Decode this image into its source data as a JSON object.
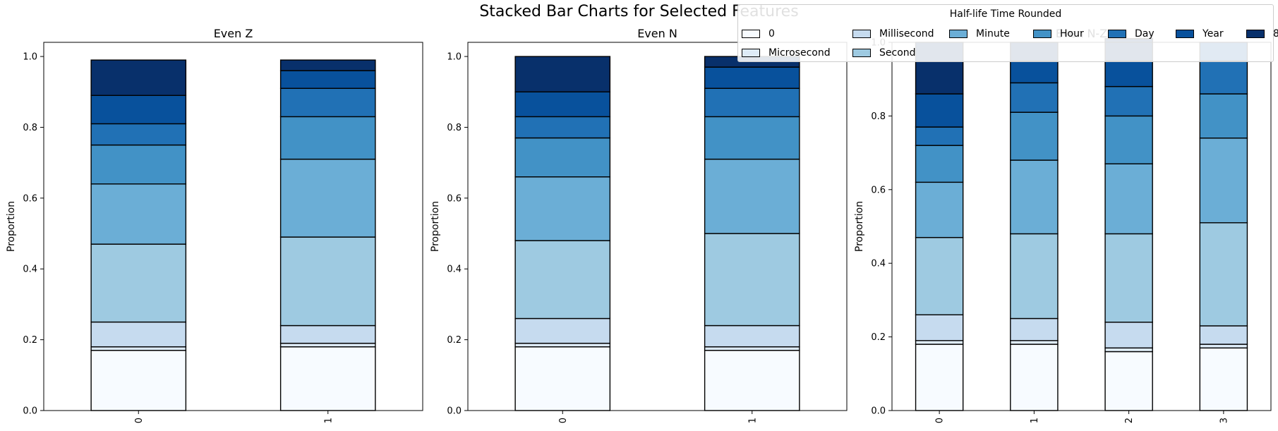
{
  "figure": {
    "suptitle": "Stacked Bar Charts for Selected Features"
  },
  "legend": {
    "title": "Half-life Time Rounded",
    "entries": [
      {
        "label": "0",
        "color": "#f7fbff"
      },
      {
        "label": "Microsecond",
        "color": "#deebf7"
      },
      {
        "label": "Millisecond",
        "color": "#c6dbef"
      },
      {
        "label": "Second",
        "color": "#9ecae1"
      },
      {
        "label": "Minute",
        "color": "#6baed6"
      },
      {
        "label": "Hour",
        "color": "#4292c6"
      },
      {
        "label": "Day",
        "color": "#2171b5"
      },
      {
        "label": "Year",
        "color": "#08519c"
      },
      {
        "label": "8",
        "color": "#08306b"
      }
    ]
  },
  "chart_data": [
    {
      "type": "bar",
      "stacked": true,
      "title": "Even Z",
      "xlabel": "",
      "ylabel": "Proportion",
      "ylim": [
        0,
        1.04
      ],
      "yticks": [
        "0.0",
        "0.2",
        "0.4",
        "0.6",
        "0.8",
        "1.0"
      ],
      "categories": [
        "0",
        "1"
      ],
      "series": [
        {
          "name": "0",
          "values": [
            0.17,
            0.18
          ]
        },
        {
          "name": "Microsecond",
          "values": [
            0.01,
            0.01
          ]
        },
        {
          "name": "Millisecond",
          "values": [
            0.07,
            0.05
          ]
        },
        {
          "name": "Second",
          "values": [
            0.22,
            0.25
          ]
        },
        {
          "name": "Minute",
          "values": [
            0.17,
            0.22
          ]
        },
        {
          "name": "Hour",
          "values": [
            0.11,
            0.12
          ]
        },
        {
          "name": "Day",
          "values": [
            0.06,
            0.08
          ]
        },
        {
          "name": "Year",
          "values": [
            0.08,
            0.05
          ]
        },
        {
          "name": "8",
          "values": [
            0.1,
            0.03
          ]
        }
      ]
    },
    {
      "type": "bar",
      "stacked": true,
      "title": "Even N",
      "xlabel": "",
      "ylabel": "Proportion",
      "ylim": [
        0,
        1.04
      ],
      "yticks": [
        "0.0",
        "0.2",
        "0.4",
        "0.6",
        "0.8",
        "1.0"
      ],
      "categories": [
        "0",
        "1"
      ],
      "series": [
        {
          "name": "0",
          "values": [
            0.18,
            0.17
          ]
        },
        {
          "name": "Microsecond",
          "values": [
            0.01,
            0.01
          ]
        },
        {
          "name": "Millisecond",
          "values": [
            0.07,
            0.06
          ]
        },
        {
          "name": "Second",
          "values": [
            0.22,
            0.26
          ]
        },
        {
          "name": "Minute",
          "values": [
            0.18,
            0.21
          ]
        },
        {
          "name": "Hour",
          "values": [
            0.11,
            0.12
          ]
        },
        {
          "name": "Day",
          "values": [
            0.06,
            0.08
          ]
        },
        {
          "name": "Year",
          "values": [
            0.07,
            0.06
          ]
        },
        {
          "name": "8",
          "values": [
            0.1,
            0.03
          ]
        }
      ]
    },
    {
      "type": "bar",
      "stacked": true,
      "title": "Even N-Z",
      "xlabel": "",
      "ylabel": "Proportion",
      "ylim": [
        0,
        1.0
      ],
      "yticks": [
        "0.0",
        "0.2",
        "0.4",
        "0.6",
        "0.8",
        "1.0"
      ],
      "categories": [
        "0",
        "1",
        "2",
        "3"
      ],
      "series": [
        {
          "name": "0",
          "values": [
            0.18,
            0.18,
            0.16,
            0.17
          ]
        },
        {
          "name": "Microsecond",
          "values": [
            0.01,
            0.01,
            0.01,
            0.01
          ]
        },
        {
          "name": "Millisecond",
          "values": [
            0.07,
            0.06,
            0.07,
            0.05
          ]
        },
        {
          "name": "Second",
          "values": [
            0.21,
            0.23,
            0.24,
            0.28
          ]
        },
        {
          "name": "Minute",
          "values": [
            0.15,
            0.2,
            0.19,
            0.23
          ]
        },
        {
          "name": "Hour",
          "values": [
            0.1,
            0.13,
            0.13,
            0.12
          ]
        },
        {
          "name": "Day",
          "values": [
            0.05,
            0.08,
            0.08,
            0.09
          ]
        },
        {
          "name": "Year",
          "values": [
            0.09,
            0.06,
            0.07,
            0.05
          ]
        },
        {
          "name": "8",
          "values": [
            0.14,
            0.05,
            0.06,
            0.0
          ]
        }
      ]
    }
  ]
}
